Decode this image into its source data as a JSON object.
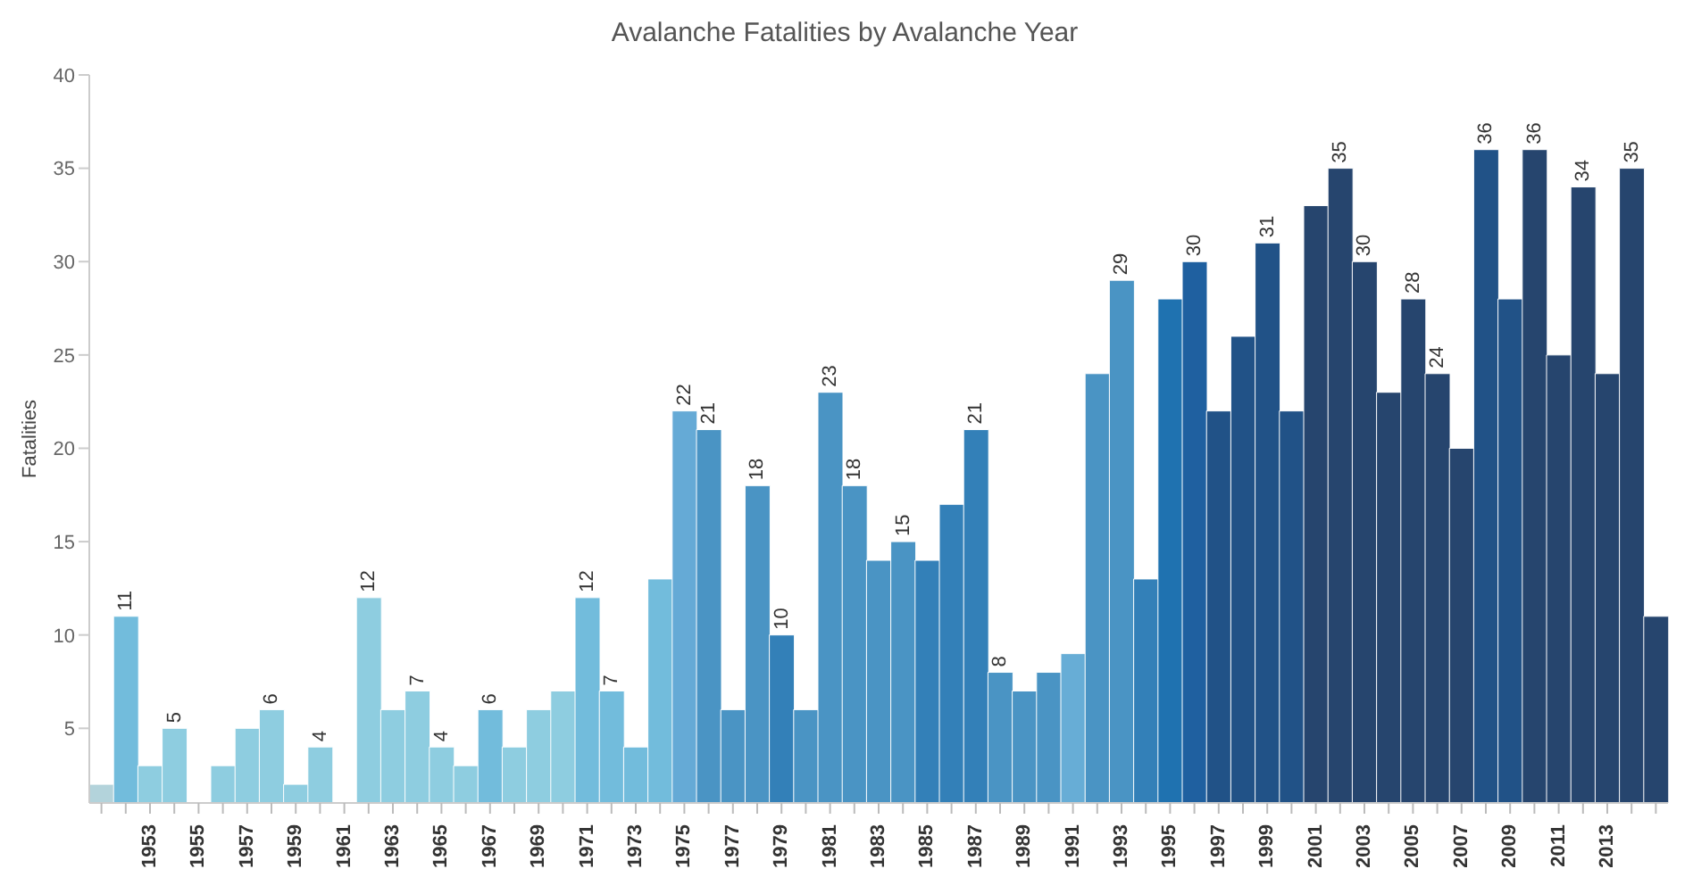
{
  "chart_data": {
    "type": "bar",
    "title": "Avalanche Fatalities by Avalanche Year",
    "ylabel": "Fatalities",
    "categories": [
      null,
      null,
      "1953",
      null,
      "1955",
      null,
      "1957",
      null,
      "1959",
      null,
      "1961",
      null,
      "1963",
      null,
      "1965",
      null,
      "1967",
      null,
      "1969",
      null,
      "1971",
      null,
      "1973",
      null,
      "1975",
      null,
      "1977",
      null,
      "1979",
      null,
      "1981",
      null,
      "1983",
      null,
      "1985",
      null,
      "1987",
      null,
      "1989",
      null,
      "1991",
      null,
      "1993",
      null,
      "1995",
      null,
      "1997",
      null,
      "1999",
      null,
      "2001",
      null,
      "2003",
      null,
      "2005",
      null,
      "2007",
      null,
      "2009",
      null,
      "2011",
      null,
      "2013",
      null,
      null
    ],
    "values": [
      2,
      11,
      3,
      5,
      null,
      3,
      5,
      6,
      2,
      4,
      null,
      12,
      6,
      7,
      4,
      3,
      6,
      4,
      6,
      7,
      12,
      7,
      4,
      13,
      22,
      21,
      6,
      18,
      10,
      6,
      23,
      18,
      14,
      15,
      14,
      17,
      21,
      8,
      7,
      8,
      9,
      24,
      29,
      13,
      28,
      30,
      22,
      26,
      31,
      22,
      33,
      35,
      30,
      23,
      28,
      24,
      20,
      36,
      28,
      36,
      25,
      34,
      24,
      35,
      11
    ],
    "value_labels": [
      null,
      "11",
      null,
      "5",
      null,
      null,
      null,
      "6",
      null,
      "4",
      null,
      "12",
      null,
      "7",
      "4",
      null,
      "6",
      null,
      null,
      null,
      "12",
      "7",
      null,
      null,
      "22",
      "21",
      null,
      "18",
      "10",
      null,
      "23",
      "18",
      null,
      "15",
      null,
      null,
      "21",
      "8",
      null,
      null,
      null,
      null,
      "29",
      null,
      null,
      "30",
      null,
      null,
      "31",
      null,
      null,
      "35",
      "30",
      null,
      "28",
      "24",
      null,
      "36",
      null,
      "36",
      null,
      "34",
      null,
      "35",
      null
    ],
    "colors": [
      "#b3d3db",
      "#72bcdc",
      "#8ecde0",
      "#8ecde0",
      "#8ecde0",
      "#8ecde0",
      "#8ecde0",
      "#8ecde0",
      "#8ecde0",
      "#8ecde0",
      "#8ecde0",
      "#8ecde0",
      "#8ecde0",
      "#8ecde0",
      "#8ecde0",
      "#8ecde0",
      "#72bcdc",
      "#8ecde0",
      "#8ecde0",
      "#8ecde0",
      "#72bcdc",
      "#72bcdc",
      "#72bcdc",
      "#72bcdc",
      "#65aad6",
      "#4a94c4",
      "#4a94c4",
      "#4a94c4",
      "#3380b8",
      "#4a94c4",
      "#4a94c4",
      "#4a94c4",
      "#4a94c4",
      "#4a94c4",
      "#3380b8",
      "#3380b8",
      "#3380b8",
      "#4a94c4",
      "#4a94c4",
      "#4a94c4",
      "#67add6",
      "#4a94c4",
      "#4a94c4",
      "#3380b8",
      "#1f72b0",
      "#1f60a0",
      "#215287",
      "#215287",
      "#215287",
      "#215287",
      "#26456e",
      "#26456e",
      "#26456e",
      "#26456e",
      "#26456e",
      "#26456e",
      "#26456e",
      "#215287",
      "#215287",
      "#26456e",
      "#26456e",
      "#26456e",
      "#26456e",
      "#26456e",
      "#26456e"
    ],
    "ylim": [
      1,
      40
    ],
    "yticks": [
      5,
      10,
      15,
      20,
      25,
      30,
      35,
      40
    ],
    "grid": false,
    "legend": false
  }
}
